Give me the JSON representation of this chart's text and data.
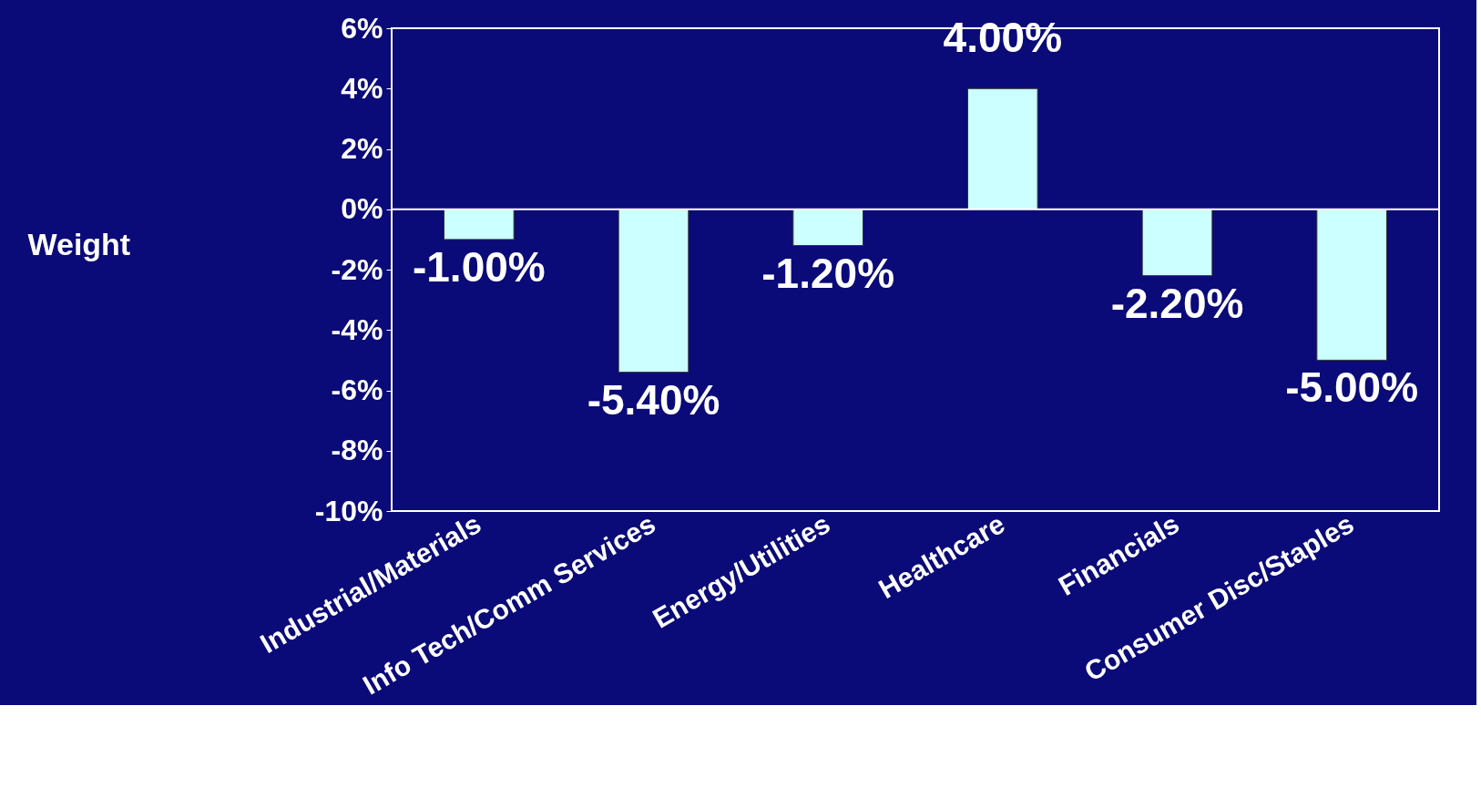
{
  "chart_data": {
    "type": "bar",
    "ylabel": "Weight",
    "categories": [
      "Industrial/Materials",
      "Info Tech/Comm Services",
      "Energy/Utilities",
      "Healthcare",
      "Financials",
      "Consumer Disc/Staples"
    ],
    "values": [
      -1.0,
      -5.4,
      -1.2,
      4.0,
      -2.2,
      -5.0
    ],
    "value_labels": [
      "-1.00%",
      "-5.40%",
      "-1.20%",
      "4.00%",
      "-2.20%",
      "-5.00%"
    ],
    "color": "#ccffff",
    "ylim": [
      -10,
      6
    ],
    "yticks": [
      {
        "value": -10,
        "label": "-10%"
      },
      {
        "value": -8,
        "label": "-8%"
      },
      {
        "value": -6,
        "label": "-6%"
      },
      {
        "value": -4,
        "label": "-4%"
      },
      {
        "value": -2,
        "label": "-2%"
      },
      {
        "value": 0,
        "label": "0%"
      },
      {
        "value": 2,
        "label": "2%"
      },
      {
        "value": 4,
        "label": "4%"
      },
      {
        "value": 6,
        "label": "6%"
      }
    ],
    "ref_lines": [
      {
        "axis": "y",
        "value": 0,
        "color": "#ffffff"
      }
    ],
    "grid": false
  }
}
